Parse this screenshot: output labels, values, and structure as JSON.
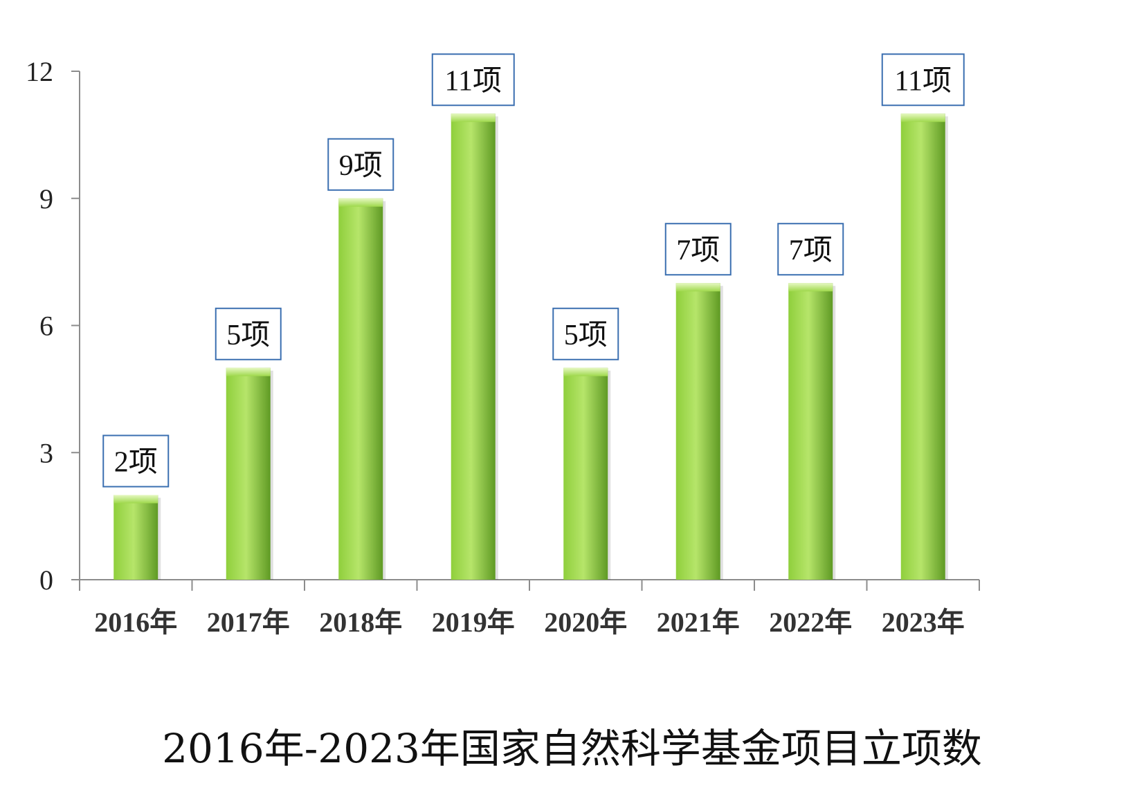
{
  "chart_data": {
    "type": "bar",
    "categories": [
      "2016年",
      "2017年",
      "2018年",
      "2019年",
      "2020年",
      "2021年",
      "2022年",
      "2023年"
    ],
    "values": [
      2,
      5,
      9,
      11,
      5,
      7,
      7,
      11
    ],
    "data_labels": [
      "2项",
      "5项",
      "9项",
      "11项",
      "5项",
      "7项",
      "7项",
      "11项"
    ],
    "title": "2016年-2023年国家自然科学基金项目立项数",
    "ylim": [
      0,
      12
    ],
    "yticks": [
      0,
      3,
      6,
      9,
      12
    ],
    "grid": false,
    "colors": {
      "bar_light": "#b6e56a",
      "bar_mid": "#8fcf3c",
      "bar_dark": "#5f9a24",
      "label_border": "#3a6fb0",
      "axis": "#8c8c8c"
    }
  }
}
